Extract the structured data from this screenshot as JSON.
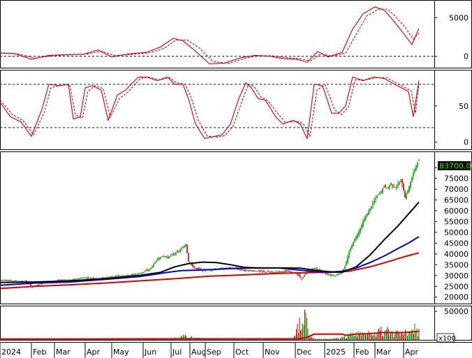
{
  "chart_data": {
    "type": "financial-multi-panel",
    "x_axis": {
      "tick_labels": [
        "2024",
        "Feb",
        "Mar",
        "Apr",
        "May",
        "Jun",
        "Jul",
        "Aug",
        "Sep",
        "Oct",
        "Nov",
        "Dec",
        "2025",
        "Feb",
        "Mar",
        "Apr"
      ],
      "tick_index": [
        0,
        45,
        78,
        122,
        160,
        205,
        245,
        272,
        294,
        335,
        377,
        423,
        465,
        507,
        537,
        578
      ]
    },
    "panels": [
      {
        "id": "macd",
        "type": "line",
        "y_ticks": [
          "5000",
          "0"
        ],
        "y_tick_values": [
          5000,
          0
        ],
        "ylim": [
          -1500,
          7300
        ],
        "hlines": [
          0
        ],
        "series": [
          {
            "role": "macd",
            "color": "#cc0000",
            "style": "solid",
            "x": [
              0,
              20,
              45,
              70,
              95,
              120,
              140,
              160,
              185,
              210,
              230,
              248,
              262,
              278,
              300,
              322,
              345,
              365,
              385,
              405,
              425,
              440,
              455,
              470,
              490,
              505,
              520,
              537,
              550,
              560,
              575,
              590,
              600
            ],
            "y": [
              400,
              350,
              -400,
              100,
              200,
              250,
              800,
              -100,
              300,
              500,
              1200,
              2300,
              2000,
              800,
              -1000,
              -900,
              -200,
              100,
              0,
              -300,
              -400,
              -800,
              600,
              -100,
              500,
              3500,
              5500,
              6400,
              6000,
              5000,
              3300,
              1500,
              3600
            ]
          },
          {
            "role": "signal",
            "color": "#cc0000",
            "style": "dashed",
            "x": [
              0,
              25,
              50,
              75,
              100,
              125,
              145,
              165,
              190,
              215,
              235,
              252,
              268,
              285,
              305,
              328,
              350,
              370,
              390,
              410,
              430,
              445,
              460,
              475,
              495,
              510,
              525,
              542,
              555,
              565,
              580,
              592,
              600
            ],
            "y": [
              420,
              300,
              -250,
              50,
              180,
              280,
              650,
              50,
              250,
              450,
              1000,
              2100,
              2100,
              1100,
              -700,
              -950,
              -300,
              50,
              50,
              -200,
              -350,
              -600,
              300,
              0,
              400,
              2800,
              5200,
              6100,
              6100,
              5300,
              3800,
              2200,
              3000
            ]
          }
        ]
      },
      {
        "id": "stochastic",
        "type": "line",
        "y_ticks": [
          "50",
          "0"
        ],
        "y_tick_values": [
          50,
          0
        ],
        "ylim": [
          -10,
          100
        ],
        "hlines": [
          80,
          20
        ],
        "series": [
          {
            "role": "%K",
            "color": "#cc0000",
            "style": "solid",
            "x": [
              0,
              15,
              30,
              45,
              60,
              70,
              85,
              98,
              105,
              115,
              122,
              132,
              145,
              155,
              168,
              180,
              198,
              210,
              225,
              240,
              250,
              262,
              270,
              280,
              293,
              308,
              318,
              330,
              342,
              352,
              360,
              370,
              380,
              395,
              405,
              420,
              430,
              440,
              450,
              462,
              475,
              485,
              495,
              505,
              520,
              535,
              550,
              565,
              575,
              585,
              592,
              600
            ],
            "y": [
              55,
              35,
              28,
              8,
              45,
              80,
              78,
              80,
              32,
              35,
              75,
              78,
              72,
              30,
              65,
              72,
              90,
              90,
              85,
              90,
              80,
              80,
              60,
              25,
              5,
              8,
              10,
              25,
              60,
              82,
              75,
              60,
              58,
              35,
              25,
              30,
              25,
              5,
              80,
              78,
              40,
              40,
              50,
              90,
              85,
              90,
              88,
              80,
              75,
              70,
              35,
              85
            ]
          },
          {
            "role": "%D",
            "color": "#cc0000",
            "style": "dashed",
            "x": [
              0,
              18,
              33,
              48,
              63,
              73,
              88,
              100,
              108,
              118,
              126,
              136,
              148,
              158,
              171,
              184,
              201,
              213,
              228,
              243,
              253,
              265,
              273,
              284,
              297,
              312,
              322,
              334,
              346,
              356,
              364,
              374,
              384,
              399,
              409,
              424,
              434,
              444,
              454,
              466,
              479,
              489,
              499,
              509,
              524,
              539,
              554,
              569,
              579,
              589,
              595,
              600
            ],
            "y": [
              58,
              38,
              30,
              10,
              40,
              75,
              79,
              79,
              38,
              33,
              70,
              78,
              74,
              34,
              60,
              70,
              88,
              90,
              86,
              89,
              82,
              80,
              64,
              30,
              8,
              7,
              9,
              22,
              55,
              80,
              77,
              62,
              57,
              38,
              27,
              29,
              26,
              8,
              72,
              79,
              45,
              38,
              48,
              86,
              86,
              89,
              89,
              81,
              76,
              71,
              40,
              80
            ]
          }
        ]
      },
      {
        "id": "price",
        "type": "candlestick",
        "y_ticks": [
          "80000",
          "75000",
          "70000",
          "65000",
          "60000",
          "55000",
          "50000",
          "45000",
          "40000",
          "35000",
          "30000",
          "25000",
          "20000"
        ],
        "y_tick_values": [
          80000,
          75000,
          70000,
          65000,
          60000,
          55000,
          50000,
          45000,
          40000,
          35000,
          30000,
          25000,
          20000
        ],
        "ylim": [
          17000,
          87500
        ],
        "last_price_label": "83700.00",
        "last_price": 83700,
        "candles_close_path": {
          "x": [
            0,
            20,
            40,
            45,
            60,
            80,
            100,
            120,
            140,
            160,
            180,
            200,
            215,
            225,
            232,
            240,
            248,
            255,
            262,
            266,
            270,
            278,
            290,
            310,
            330,
            350,
            370,
            390,
            410,
            425,
            432,
            440,
            450,
            460,
            470,
            480,
            490,
            495,
            500,
            505,
            510,
            515,
            520,
            525,
            530,
            535,
            540,
            545,
            550,
            555,
            560,
            565,
            570,
            575,
            580,
            585,
            588,
            592,
            596,
            600
          ],
          "y": [
            28000,
            27500,
            27000,
            24500,
            26500,
            27500,
            28000,
            29000,
            28500,
            29500,
            30000,
            31000,
            33000,
            37500,
            39000,
            38500,
            40000,
            41000,
            43000,
            44500,
            36500,
            33500,
            32500,
            33000,
            33500,
            32500,
            32000,
            31500,
            32000,
            31000,
            28500,
            32000,
            33500,
            32000,
            30500,
            30000,
            31500,
            35000,
            41000,
            45000,
            48000,
            51000,
            55000,
            58000,
            61000,
            64000,
            67000,
            68500,
            71500,
            70000,
            73000,
            70500,
            72000,
            74500,
            66000,
            70000,
            73500,
            77500,
            81000,
            83700
          ]
        },
        "series": [
          {
            "role": "ma-long",
            "color": "#d00000",
            "x": [
              0,
              50,
              100,
              150,
              200,
              250,
              300,
              350,
              400,
              450,
              480,
              500,
              530,
              560,
              580,
              600
            ],
            "y": [
              24000,
              25000,
              25700,
              26500,
              27500,
              28500,
              29700,
              30300,
              31000,
              31400,
              31600,
              32000,
              34000,
              36800,
              38800,
              40500
            ]
          },
          {
            "role": "ma-mid",
            "color": "#0000cc",
            "x": [
              0,
              50,
              100,
              150,
              200,
              240,
              260,
              280,
              300,
              330,
              360,
              400,
              430,
              450,
              470,
              490,
              510,
              530,
              550,
              570,
              585,
              600
            ],
            "y": [
              25500,
              26500,
              27000,
              28200,
              29500,
              31500,
              32300,
              32500,
              32700,
              33200,
              33500,
              33500,
              32500,
              31800,
              31500,
              32000,
              33500,
              36000,
              39000,
              42500,
              45000,
              48000
            ]
          },
          {
            "role": "ma-short",
            "color": "#000000",
            "x": [
              0,
              50,
              100,
              150,
              200,
              230,
              250,
              270,
              290,
              310,
              330,
              350,
              370,
              400,
              430,
              450,
              470,
              490,
              510,
              530,
              550,
              570,
              585,
              600
            ],
            "y": [
              26800,
              27000,
              27500,
              28500,
              30000,
              31500,
              34000,
              35500,
              36200,
              36000,
              35000,
              33800,
              33500,
              33500,
              33400,
              32500,
              31800,
              31500,
              34000,
              39500,
              46500,
              53000,
              58500,
              64000
            ]
          }
        ]
      },
      {
        "id": "volume",
        "type": "bar",
        "y_ticks": [
          "50000"
        ],
        "y_tick_values": [
          50000
        ],
        "ylim": [
          0,
          60000
        ],
        "unit_label": "x100",
        "bars": {
          "x": [
            0,
            40,
            80,
            120,
            160,
            200,
            230,
            250,
            265,
            290,
            330,
            370,
            400,
            420,
            436,
            438,
            440,
            442,
            446,
            452,
            460,
            470,
            480,
            495,
            500,
            505,
            510,
            515,
            520,
            525,
            530,
            535,
            540,
            545,
            550,
            555,
            560,
            565,
            570,
            575,
            580,
            585,
            590,
            595,
            598
          ],
          "y": [
            1500,
            1500,
            2000,
            1500,
            1500,
            2000,
            2500,
            3000,
            8000,
            2000,
            1500,
            1500,
            2000,
            2500,
            55000,
            48000,
            35000,
            5000,
            4000,
            2500,
            2000,
            2000,
            2500,
            6000,
            9000,
            12000,
            14000,
            10000,
            16000,
            18000,
            9000,
            15000,
            12000,
            20000,
            11000,
            18000,
            14000,
            9000,
            17000,
            13000,
            15000,
            11000,
            26000,
            22000,
            16000
          ]
        },
        "ma": {
          "color": "#cc0000",
          "x": [
            0,
            100,
            200,
            300,
            400,
            430,
            440,
            450,
            470,
            490,
            495,
            510,
            530,
            550,
            570,
            585,
            600
          ],
          "y": [
            1500,
            1500,
            1800,
            1800,
            1800,
            2000,
            4500,
            10000,
            10000,
            10000,
            8000,
            10000,
            11000,
            13000,
            12500,
            13500,
            15000
          ]
        }
      }
    ]
  }
}
